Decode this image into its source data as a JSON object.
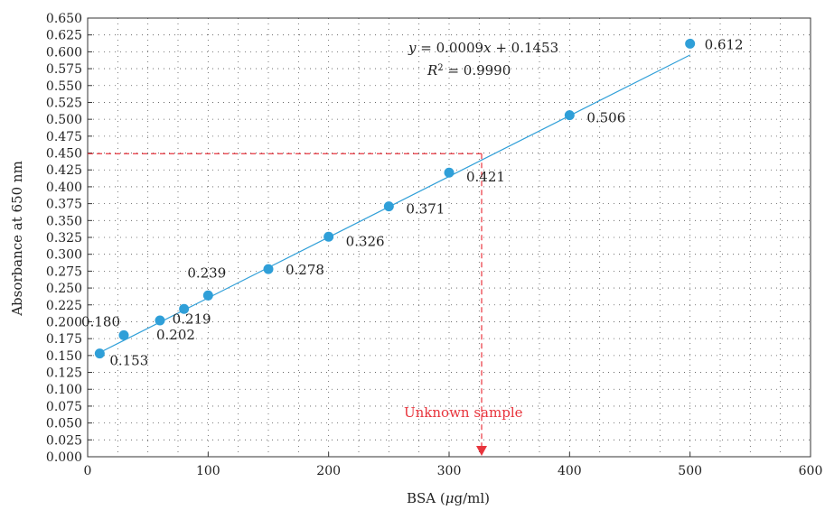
{
  "chart_data": {
    "type": "scatter",
    "xlabel": "BSA (μg/ml)",
    "ylabel": "Absorbance at 650 nm",
    "xlim": [
      0,
      600
    ],
    "ylim": [
      0,
      0.65
    ],
    "x_ticks": [
      0,
      100,
      200,
      300,
      400,
      500,
      600
    ],
    "x_tick_labels": [
      "0",
      "100",
      "200",
      "300",
      "400",
      "500",
      "600"
    ],
    "y_ticks": [
      0,
      0.025,
      0.05,
      0.075,
      0.1,
      0.125,
      0.15,
      0.175,
      0.2,
      0.225,
      0.25,
      0.275,
      0.3,
      0.325,
      0.35,
      0.375,
      0.4,
      0.425,
      0.45,
      0.475,
      0.5,
      0.525,
      0.55,
      0.575,
      0.6,
      0.625,
      0.65
    ],
    "y_tick_labels": [
      "0.000",
      "0.025",
      "0.050",
      "0.075",
      "0.100",
      "0.125",
      "0.150",
      "0.175",
      "0.200",
      "0.225",
      "0.250",
      "0.275",
      "0.300",
      "0.325",
      "0.350",
      "0.375",
      "0.400",
      "0.425",
      "0.450",
      "0.475",
      "0.500",
      "0.525",
      "0.550",
      "0.575",
      "0.600",
      "0.625",
      "0.650"
    ],
    "grid": true,
    "points": [
      {
        "x": 10,
        "y": 0.153,
        "label": "0.153"
      },
      {
        "x": 30,
        "y": 0.18,
        "label": "0.180"
      },
      {
        "x": 60,
        "y": 0.202,
        "label": "0.202"
      },
      {
        "x": 80,
        "y": 0.219,
        "label": "0.219"
      },
      {
        "x": 100,
        "y": 0.239,
        "label": "0.239"
      },
      {
        "x": 150,
        "y": 0.278,
        "label": "0.278"
      },
      {
        "x": 200,
        "y": 0.326,
        "label": "0.326"
      },
      {
        "x": 250,
        "y": 0.371,
        "label": "0.371"
      },
      {
        "x": 300,
        "y": 0.421,
        "label": "0.421"
      },
      {
        "x": 400,
        "y": 0.506,
        "label": "0.506"
      },
      {
        "x": 500,
        "y": 0.612,
        "label": "0.612"
      }
    ],
    "trendline": {
      "slope": 0.0009,
      "intercept": 0.1453,
      "x_range": [
        10,
        500
      ],
      "equation": "y = 0.0009x + 0.1453",
      "r_squared_label": "R",
      "r_squared_exponent": "2",
      "r_squared_value": " = 0.9990"
    },
    "unknown_sample": {
      "label": "Unknown sample",
      "absorbance": 0.449,
      "concentration": 327
    },
    "colors": {
      "points": "#2f9fd8",
      "trendline": "#2f9fd8",
      "unknown": "#e8343c",
      "grid": "#555555",
      "axis": "#333333"
    }
  }
}
